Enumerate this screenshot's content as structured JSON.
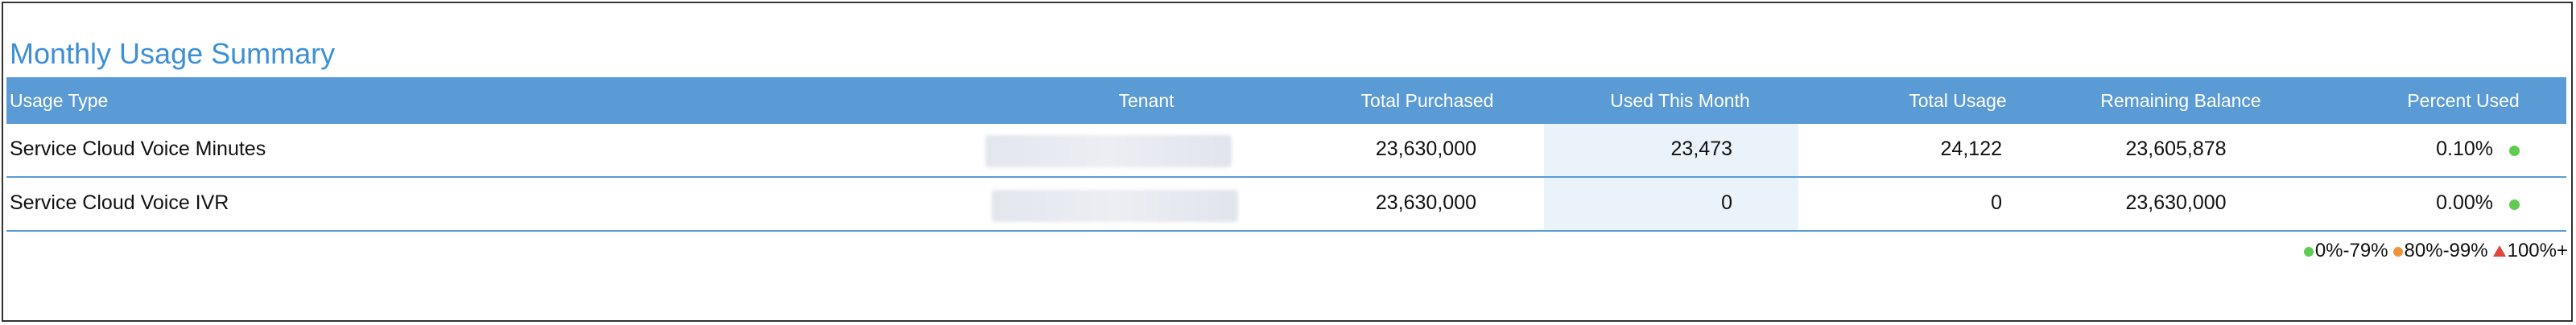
{
  "title": "Monthly Usage Summary",
  "table": {
    "headers": [
      "Usage Type",
      "Tenant",
      "Total Purchased",
      "Used This Month",
      "Total Usage",
      "Remaining Balance",
      "Percent Used"
    ],
    "rows": [
      {
        "usage_type": "Service Cloud Voice Minutes",
        "total_purchased": "23,630,000",
        "used_this_month": "23,473",
        "total_usage": "24,122",
        "remaining_balance": "23,605,878",
        "percent_used": "0.10%"
      },
      {
        "usage_type": "Service Cloud Voice IVR",
        "total_purchased": "23,630,000",
        "used_this_month": "0",
        "total_usage": "0",
        "remaining_balance": "23,630,000",
        "percent_used": "0.00%"
      }
    ]
  },
  "legend": [
    "0%-79%",
    "80%-99%",
    "100%+"
  ]
}
